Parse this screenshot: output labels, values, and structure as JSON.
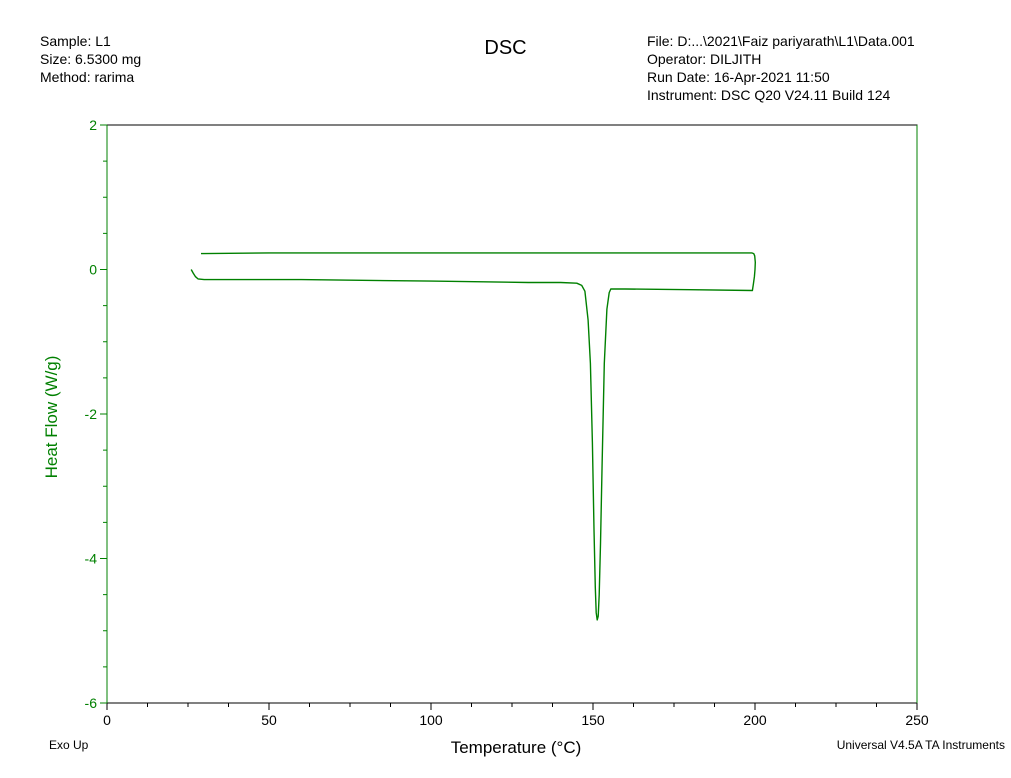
{
  "header": {
    "sample": "Sample: L1",
    "size": "Size:  6.5300 mg",
    "method": "Method: rarima",
    "file": "File: D:...\\2021\\Faiz pariyarath\\L1\\Data.001",
    "operator": "Operator: DILJITH",
    "run_date": "Run Date: 16-Apr-2021 11:50",
    "instrument": "Instrument: DSC Q20 V24.11 Build 124"
  },
  "footer": {
    "exo_up": "Exo Up",
    "software": "Universal V4.5A TA Instruments"
  },
  "colors": {
    "curve": "#008000",
    "axis": "#008000",
    "frame": "#000000"
  },
  "chart_data": {
    "type": "line",
    "title": "DSC",
    "xlabel": "Temperature (°C)",
    "ylabel": "Heat Flow (W/g)",
    "xlim": [
      0,
      250
    ],
    "ylim": [
      -6,
      2
    ],
    "x_ticks": [
      0,
      50,
      100,
      150,
      200,
      250
    ],
    "x_tick_labels": [
      "0",
      "50",
      "100",
      "150",
      "200",
      "250"
    ],
    "y_ticks": [
      2,
      0,
      -2,
      -4,
      -6
    ],
    "y_tick_labels": [
      "2",
      "0",
      "-2",
      "-4",
      "-6"
    ],
    "grid": false,
    "legend": "none",
    "series": [
      {
        "x": [
          26.0,
          26.6,
          27.3,
          28.1,
          30,
          60,
          100,
          130,
          140,
          145,
          146.5,
          147.5,
          148.5,
          149.2,
          149.8,
          150.3,
          150.7,
          151.0,
          151.3,
          151.6,
          151.9,
          152.3,
          152.8,
          153.5,
          154.3,
          155.0,
          155.5,
          160,
          180,
          199.2,
          199.5,
          199.8,
          200.0,
          200.1,
          199.9,
          199.6,
          199.0,
          195,
          180,
          150,
          120,
          80,
          50,
          30,
          29.0
        ],
        "y": [
          0.0,
          -0.05,
          -0.1,
          -0.13,
          -0.14,
          -0.14,
          -0.16,
          -0.18,
          -0.18,
          -0.19,
          -0.22,
          -0.3,
          -0.7,
          -1.3,
          -2.4,
          -3.6,
          -4.4,
          -4.75,
          -4.85,
          -4.8,
          -4.5,
          -3.8,
          -2.7,
          -1.3,
          -0.55,
          -0.32,
          -0.27,
          -0.27,
          -0.28,
          -0.29,
          -0.2,
          -0.1,
          0.0,
          0.1,
          0.19,
          0.22,
          0.23,
          0.23,
          0.23,
          0.23,
          0.23,
          0.23,
          0.23,
          0.22,
          0.22
        ]
      }
    ]
  }
}
